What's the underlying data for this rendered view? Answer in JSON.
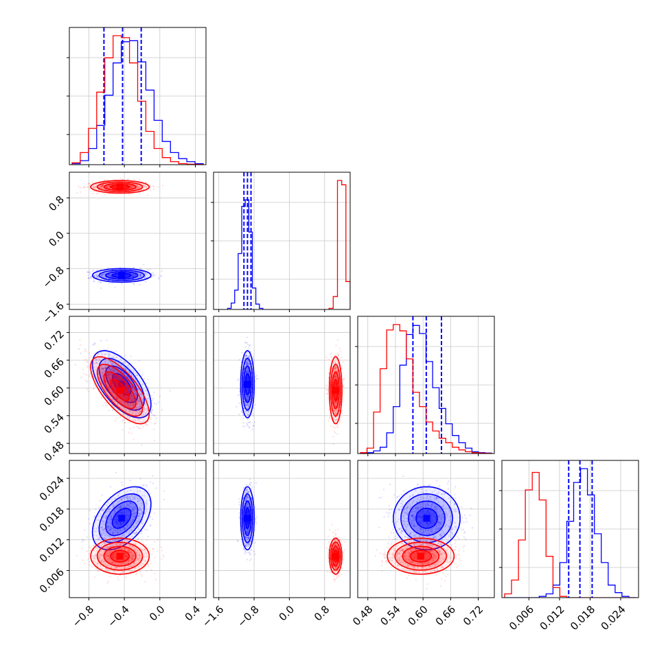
{
  "chart_data": {
    "type": "corner",
    "title": "",
    "parameters": [
      {
        "ticks": [
          -0.8,
          -0.4,
          0.0,
          0.4
        ],
        "tick_labels": [
          "−0.8",
          "−0.4",
          "0.0",
          "0.4"
        ],
        "range": [
          -1.02,
          0.52
        ]
      },
      {
        "ticks": [
          -1.6,
          -0.8,
          0.0,
          0.8
        ],
        "tick_labels": [
          "−1.6",
          "−0.8",
          "0.0",
          "0.8"
        ],
        "range": [
          -1.72,
          1.38
        ]
      },
      {
        "ticks": [
          0.48,
          0.54,
          0.6,
          0.66,
          0.72
        ],
        "tick_labels": [
          "0.48",
          "0.54",
          "0.60",
          "0.66",
          "0.72"
        ],
        "range": [
          0.458,
          0.755
        ]
      },
      {
        "ticks": [
          0.006,
          0.012,
          0.018,
          0.024
        ],
        "tick_labels": [
          "0.006",
          "0.012",
          "0.018",
          "0.024"
        ],
        "range": [
          0.0007,
          0.0275
        ]
      }
    ],
    "series": [
      {
        "color": "#0000ff",
        "quantile_lines": [
          [
            -0.63,
            -0.42,
            -0.21
          ],
          [
            -1.03,
            -0.95,
            -0.87
          ],
          [
            0.578,
            0.607,
            0.64
          ],
          [
            0.0138,
            0.016,
            0.0184
          ]
        ],
        "means": [
          -0.43,
          -0.95,
          0.608,
          0.0162
        ],
        "stds": [
          0.15,
          0.07,
          0.033,
          0.0028
        ],
        "correlations": {
          "0-1": 0.0,
          "0-2": -0.6,
          "0-3": 0.45,
          "1-2": 0.0,
          "1-3": 0.0,
          "2-3": 0.0
        },
        "histograms": [
          [
            0.1,
            0.4,
            1.6,
            3.9,
            6.9,
            10.1,
            12.2,
            12.3,
            10.2,
            7.4,
            4.4,
            2.3,
            1.2,
            0.6,
            0.3,
            0.1
          ],
          [
            0.05,
            0.3,
            0.9,
            2.6,
            4.8,
            5.1,
            3.6,
            1.0,
            0.25,
            0.05
          ],
          [
            0.05,
            0.1,
            0.3,
            0.7,
            2.3,
            5.2,
            9.8,
            13.2,
            14.2,
            13.3,
            10.2,
            7.3,
            5.0,
            3.3,
            2.0,
            1.2,
            0.6,
            0.2,
            0.1,
            0.05
          ],
          [
            0,
            0,
            0,
            0,
            0,
            0.1,
            0.3,
            1.0,
            2.8,
            6.1,
            9.2,
            10.3,
            8.2,
            5.1,
            2.8,
            1.0,
            0.4,
            0.1,
            0
          ]
        ]
      },
      {
        "color": "#ff0000",
        "quantile_lines": [],
        "means": [
          -0.45,
          1.05,
          0.595,
          0.0088
        ],
        "stds": [
          0.15,
          0.065,
          0.033,
          0.0016
        ],
        "correlations": {
          "0-1": 0.0,
          "0-2": -0.7,
          "0-3": 0.0,
          "1-2": 0.0,
          "1-3": 0.0,
          "2-3": 0.0
        },
        "histograms": [
          [
            0.2,
            1.2,
            3.6,
            7.2,
            10.6,
            12.8,
            12.6,
            10.1,
            6.3,
            3.3,
            1.6,
            0.7,
            0.3,
            0.1,
            0.05,
            0.02
          ],
          [
            0.05,
            0.6,
            6.0,
            5.8,
            1.3
          ],
          [
            0.1,
            0.6,
            4.6,
            9.4,
            13.7,
            14.3,
            13.6,
            10.5,
            6.8,
            5.2,
            3.5,
            2.5,
            1.7,
            1.2,
            0.7,
            0.4,
            0.2,
            0.1,
            0.05,
            0.02
          ],
          [
            0.3,
            1.4,
            4.6,
            8.6,
            10.0,
            7.8,
            3.3,
            0.8,
            0.1,
            0,
            0,
            0,
            0,
            0,
            0,
            0,
            0,
            0,
            0
          ]
        ]
      }
    ]
  }
}
